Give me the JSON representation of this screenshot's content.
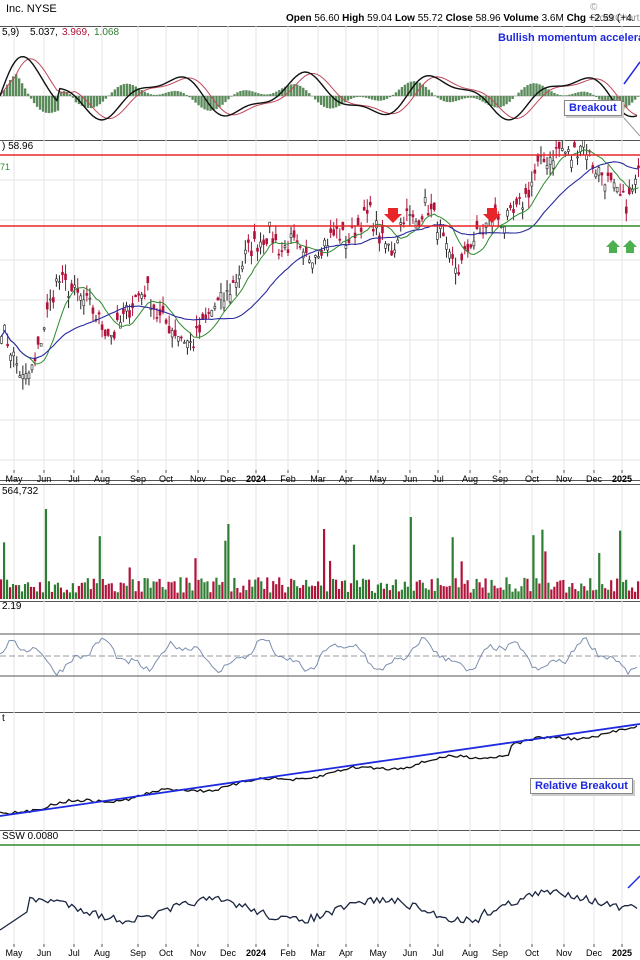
{
  "header": {
    "company": "Inc. NYSE",
    "open_label": "Open",
    "open": "56.60",
    "high_label": "High",
    "high": "59.04",
    "low_label": "Low",
    "low": "55.72",
    "close_label": "Close",
    "close": "58.96",
    "volume_label": "Volume",
    "volume": "3.6M",
    "chg_label": "Chg",
    "chg": "+2.59 (+4.",
    "watermark": "© StockCharts"
  },
  "macd": {
    "legend_prefix": "5,9)",
    "macd_value": "5.037,",
    "signal_value": "3.969,",
    "hist_value": "1.068",
    "annotation": "Bullish momentum accelerat",
    "breakout_label": "Breakout"
  },
  "price": {
    "last_label": ") 58.96",
    "ma_label": "71",
    "resistance_color": "#e8262a",
    "support_color": "#2e8b2e"
  },
  "volume": {
    "label": "564,732"
  },
  "rsi": {
    "label": "2.19"
  },
  "relative": {
    "label": "t",
    "annotation": "Relative Breakout"
  },
  "bottom": {
    "label": "SSW 0.0080"
  },
  "xaxis": {
    "top": [
      "May",
      "Jun",
      "Jul",
      "Aug",
      "Sep",
      "Oct",
      "Nov",
      "Dec",
      "2024",
      "Feb",
      "Mar",
      "Apr",
      "May",
      "Jun",
      "Jul",
      "Aug",
      "Sep",
      "Oct",
      "Nov",
      "Dec",
      "2025"
    ],
    "bottom": [
      "May",
      "Jun",
      "Jul",
      "Aug",
      "Sep",
      "Oct",
      "Nov",
      "Dec",
      "2024",
      "Feb",
      "Mar",
      "Apr",
      "May",
      "Jun",
      "Jul",
      "Aug",
      "Sep",
      "Oct",
      "Nov",
      "Dec",
      "2025"
    ]
  },
  "colors": {
    "up": "#2e7d32",
    "down": "#b0123a",
    "trend": "#1e2adf",
    "ma_fast": "#2e8b2e",
    "ma_slow": "#2a2aa0"
  },
  "chart_data": {
    "type": "line",
    "series": [
      {
        "name": "Close",
        "values": [
          43,
          40,
          37,
          39,
          44,
          48,
          47,
          46,
          45,
          43,
          42,
          44,
          46,
          47,
          44,
          43,
          42,
          41,
          43,
          45,
          46,
          48,
          51,
          52,
          53,
          51,
          52,
          50,
          51,
          52,
          53,
          52,
          54,
          55,
          52,
          51,
          55,
          54,
          56,
          54,
          50,
          49,
          52,
          53,
          55,
          54,
          55,
          57,
          60,
          61,
          62,
          61,
          63,
          60,
          59,
          57,
          56,
          59
        ]
      },
      {
        "name": "",
        "values": []
      }
    ],
    "price_levels": {
      "resistance": 58.96,
      "support": 55.7
    },
    "annotations": [
      "Bullish momentum accelerat",
      "Breakout",
      "Relative Breakout"
    ]
  }
}
